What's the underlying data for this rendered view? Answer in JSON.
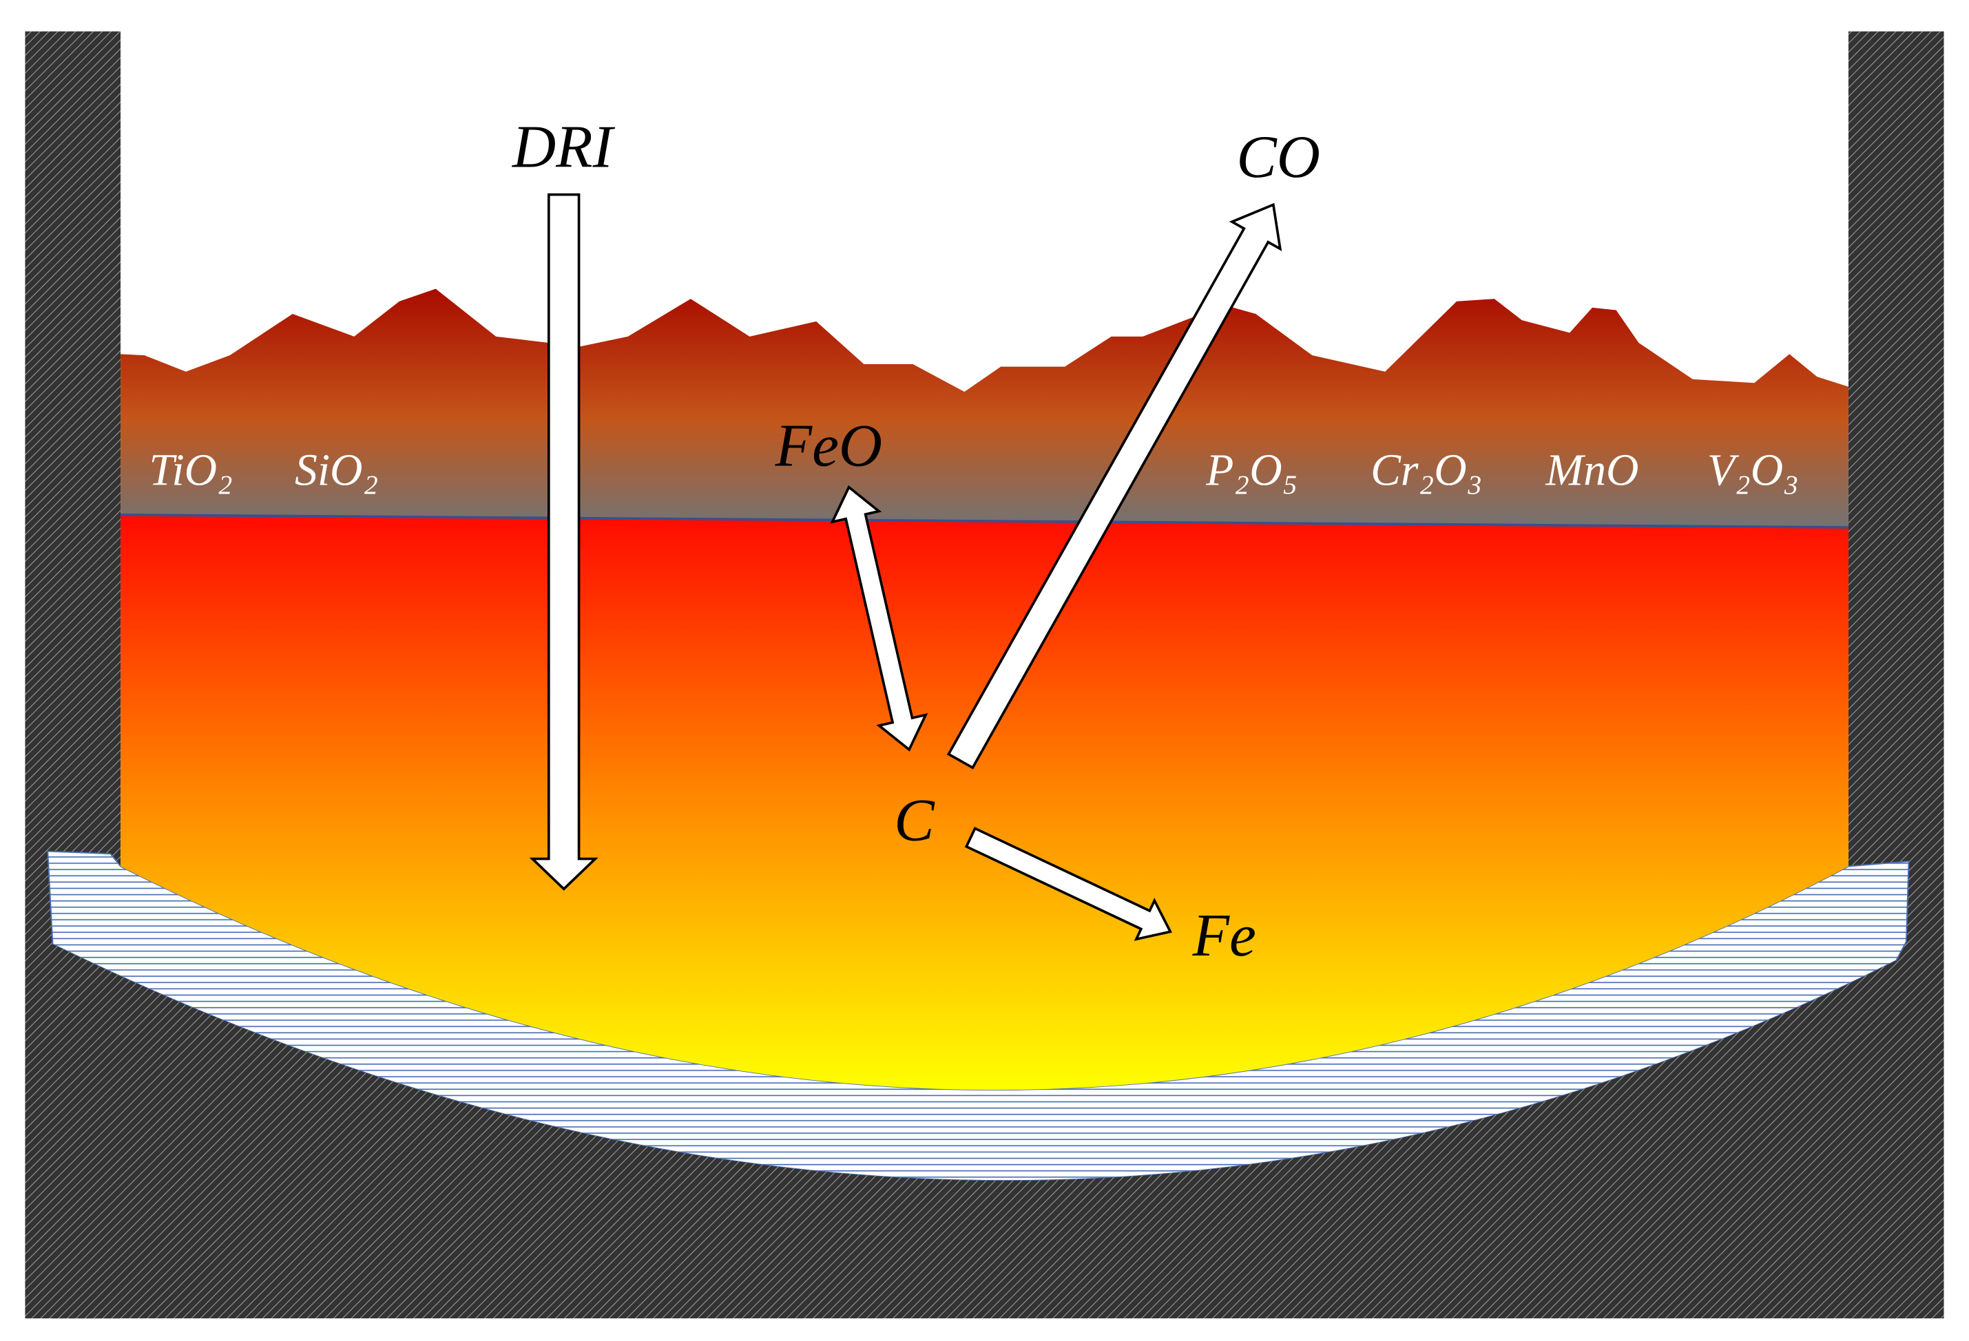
{
  "labels": {
    "input": "DRI",
    "gas": "CO",
    "oxide": "FeO",
    "carbon": "C",
    "metal": "Fe"
  },
  "slag_components": [
    "TiO₂",
    "SiO₂",
    "P₂O₅",
    "Cr₂O₃",
    "MnO",
    "V₂O₃"
  ]
}
